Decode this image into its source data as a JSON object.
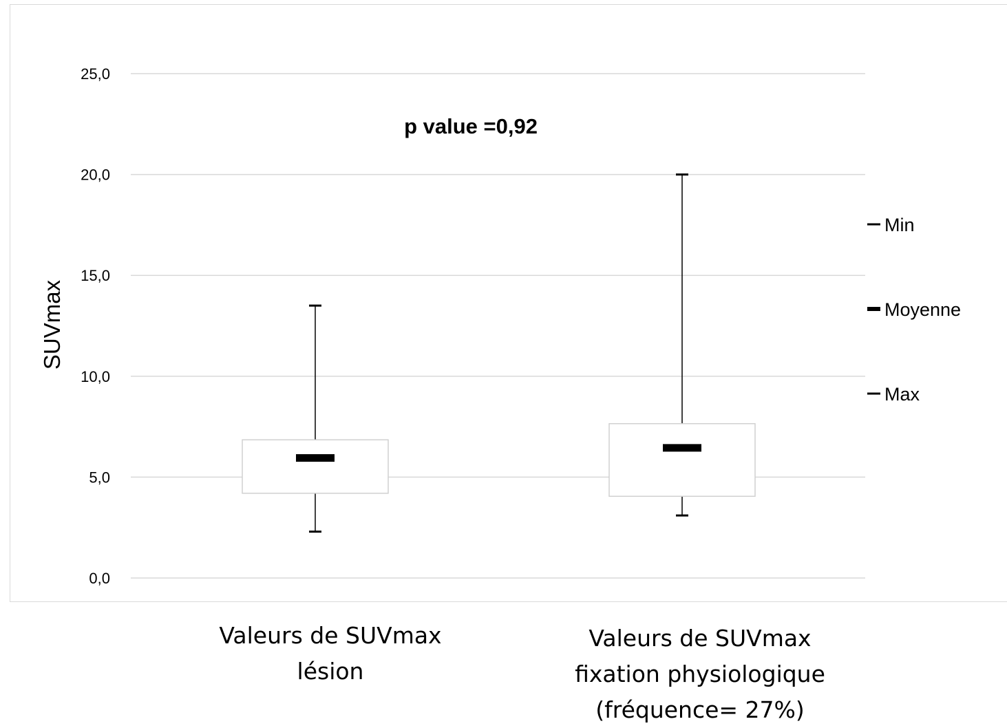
{
  "chart_data": {
    "type": "box",
    "ylabel": "SUVmax",
    "xlabel": "",
    "ylim": [
      0,
      25
    ],
    "yticks": [
      "0,0",
      "5,0",
      "10,0",
      "15,0",
      "20,0",
      "25,0"
    ],
    "ytick_values": [
      0,
      5,
      10,
      15,
      20,
      25
    ],
    "grid": true,
    "annotation": "p value =0,92",
    "legend": {
      "placement": "right",
      "entries": [
        "Min",
        "Moyenne",
        "Max"
      ]
    },
    "categories": [
      {
        "lines": [
          "Valeurs de SUVmax",
          "lésion"
        ]
      },
      {
        "lines": [
          "Valeurs de SUVmax",
          "fixation physiologique",
          "(fréquence= 27%)"
        ]
      }
    ],
    "boxes": [
      {
        "min": 2.3,
        "q1": 4.2,
        "mean": 5.95,
        "q3": 6.85,
        "max": 13.5
      },
      {
        "min": 3.1,
        "q1": 4.05,
        "mean": 6.45,
        "q3": 7.65,
        "max": 20.0
      }
    ]
  }
}
